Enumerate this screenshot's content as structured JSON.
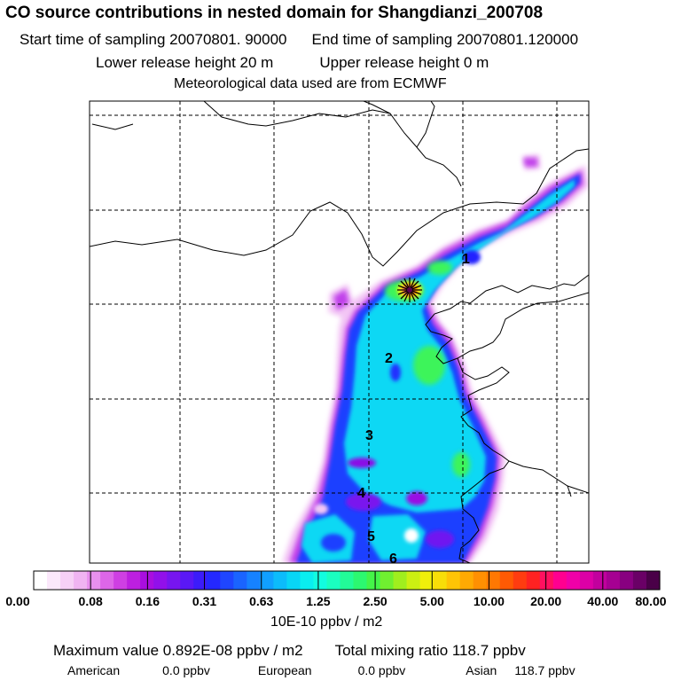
{
  "header": {
    "title": "CO  source contributions in nested domain for Shangdianzi_200708",
    "start_label": "Start time of sampling 20070801. 90000",
    "end_label": "End time of sampling 20070801.120000",
    "lower_label": "Lower release height   20 m",
    "upper_label": "Upper release height    0 m",
    "met_label": "Meteorological data used are from ECMWF"
  },
  "map": {
    "markers": [
      "1",
      "2",
      "3",
      "4",
      "5",
      "6"
    ],
    "source_marker": "star-icon"
  },
  "colorbar": {
    "ticks": [
      "0.00",
      "0.08",
      "0.16",
      "0.31",
      "0.63",
      "1.25",
      "2.50",
      "5.00",
      "10.00",
      "20.00",
      "40.00",
      "80.00"
    ],
    "unit": "10E-10 ppbv / m2",
    "colors": [
      "#ffffff",
      "#fbe8fb",
      "#f6d0f6",
      "#f0b4f2",
      "#e890ee",
      "#dd66e8",
      "#cf3fe3",
      "#bd1fe0",
      "#a90ee0",
      "#9210ea",
      "#7715f0",
      "#5a18f5",
      "#3c1cfa",
      "#2428ff",
      "#1f46ff",
      "#1a64ff",
      "#1682ff",
      "#11a0ff",
      "#0cbcfb",
      "#08d6f6",
      "#0aeef0",
      "#12fce0",
      "#1afec0",
      "#22fb98",
      "#2cf870",
      "#44f448",
      "#70f030",
      "#a0ef1e",
      "#ccf012",
      "#f0f00a",
      "#f8de08",
      "#ffc405",
      "#ffaa03",
      "#ff9002",
      "#ff7802",
      "#ff5a04",
      "#ff3c10",
      "#ff2222",
      "#ff1060",
      "#ff0090",
      "#f000a8",
      "#dc00a6",
      "#c2009e",
      "#a60092",
      "#880080",
      "#6a0066",
      "#4a0048"
    ]
  },
  "stats": {
    "max_label": "Maximum value  0.892E-08 ppbv / m2",
    "total_label": "Total mixing ratio     118.7 ppbv",
    "american_label": "American",
    "american_value": "0.0 ppbv",
    "european_label": "European",
    "european_value": "0.0 ppbv",
    "asian_label": "Asian",
    "asian_value": "118.7 ppbv"
  }
}
